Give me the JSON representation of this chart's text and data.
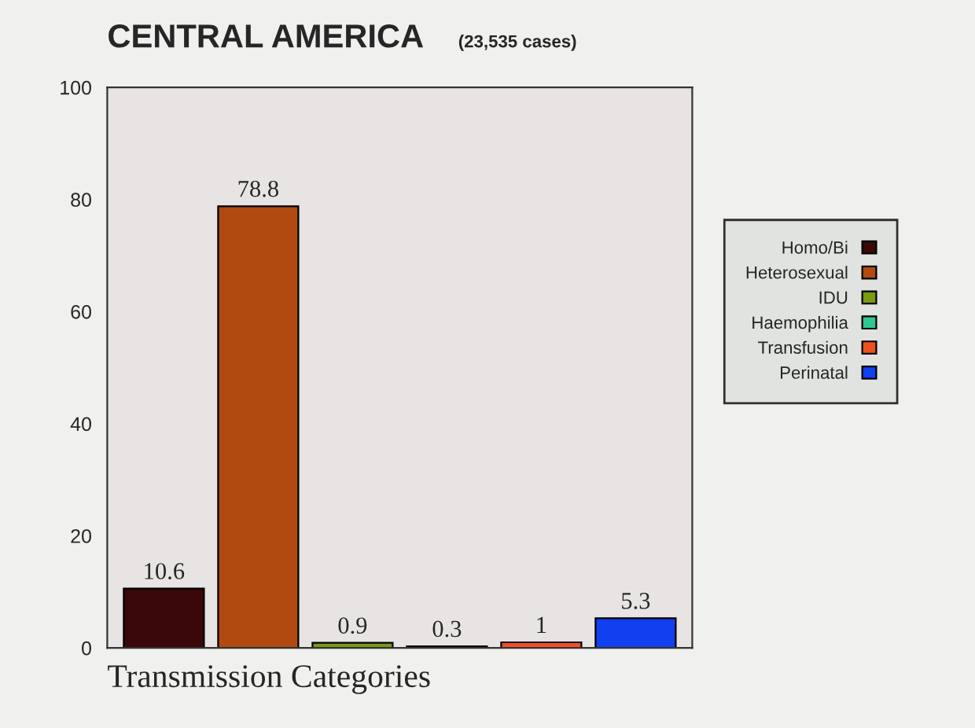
{
  "chart_data": {
    "type": "bar",
    "title": "CENTRAL AMERICA",
    "subtitle": "(23,535 cases)",
    "xlabel": "Transmission Categories",
    "categories": [
      null,
      null,
      null,
      null,
      null,
      null
    ],
    "series": [
      {
        "name": "Homo/Bi",
        "color": "#3a0808",
        "values": [
          10.6,
          null,
          null,
          null,
          null,
          null
        ]
      },
      {
        "name": "Heterosexual",
        "color": "#b04a10",
        "values": [
          null,
          78.8,
          null,
          null,
          null,
          null
        ]
      },
      {
        "name": "IDU",
        "color": "#7a9a10",
        "values": [
          null,
          null,
          0.9,
          null,
          null,
          null
        ]
      },
      {
        "name": "Haemophilia",
        "color": "#30c890",
        "values": [
          null,
          null,
          null,
          0.3,
          null,
          null
        ]
      },
      {
        "name": "Transfusion",
        "color": "#f05020",
        "values": [
          null,
          null,
          null,
          null,
          1,
          null
        ]
      },
      {
        "name": "Perinatal",
        "color": "#1040f0",
        "values": [
          null,
          null,
          null,
          null,
          null,
          5.3
        ]
      }
    ],
    "ylim": [
      0,
      100
    ],
    "yticks": [
      0,
      20,
      40,
      60,
      80,
      100
    ],
    "data_labels": true,
    "grid": false,
    "legend": "right"
  }
}
